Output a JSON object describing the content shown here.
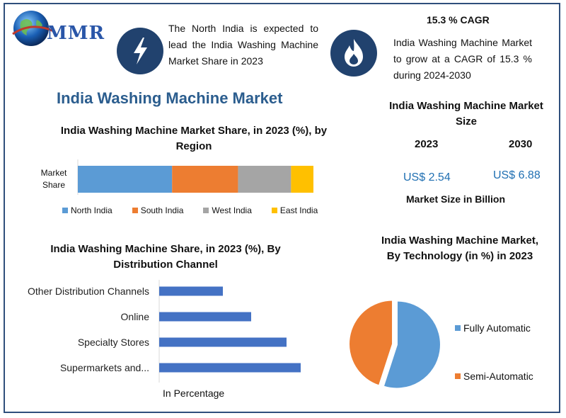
{
  "brand": {
    "name": "MMR"
  },
  "header": {
    "north_text": "The North India is expected to lead the India Washing Machine Market Share in 2023",
    "cagr_title": "15.3 % CAGR",
    "cagr_text": "India Washing Machine Market to grow at a CAGR of 15.3 % during 2024-2030"
  },
  "main_title": "India Washing Machine Market",
  "market_size": {
    "title": "India Washing Machine Market Size",
    "year1": "2023",
    "year2": "2030",
    "value1": "US$ 2.54",
    "value2": "US$ 6.88",
    "unit_label": "Market Size in Billion"
  },
  "colors": {
    "blue": "#5b9bd5",
    "orange": "#ed7d31",
    "gray": "#a5a5a5",
    "yellow": "#ffc000",
    "bar": "#4472c4",
    "dark_circle": "#21426e"
  },
  "chart_data": [
    {
      "type": "bar",
      "stacked": true,
      "orientation": "horizontal",
      "title": "India Washing Machine Market Share, in 2023 (%), by Region",
      "categories": [
        "Market Share"
      ],
      "series": [
        {
          "name": "North India",
          "values": [
            40
          ]
        },
        {
          "name": "South India",
          "values": [
            28
          ]
        },
        {
          "name": "West India",
          "values": [
            22.5
          ]
        },
        {
          "name": "East India",
          "values": [
            9.5
          ]
        }
      ],
      "legend": "bottom"
    },
    {
      "type": "bar",
      "orientation": "horizontal",
      "title": "India Washing Machine Share, in 2023 (%), By Distribution Channel",
      "categories": [
        "Other Distribution Channels",
        "Online",
        "Specialty Stores",
        "Supermarkets and..."
      ],
      "values": [
        18,
        26,
        36,
        40
      ],
      "xlabel": "In Percentage"
    },
    {
      "type": "pie",
      "title": "India Washing Machine Market, By Technology (in %) in 2023",
      "categories": [
        "Fully Automatic",
        "Semi-Automatic"
      ],
      "values": [
        55,
        45
      ],
      "legend": "right"
    }
  ]
}
